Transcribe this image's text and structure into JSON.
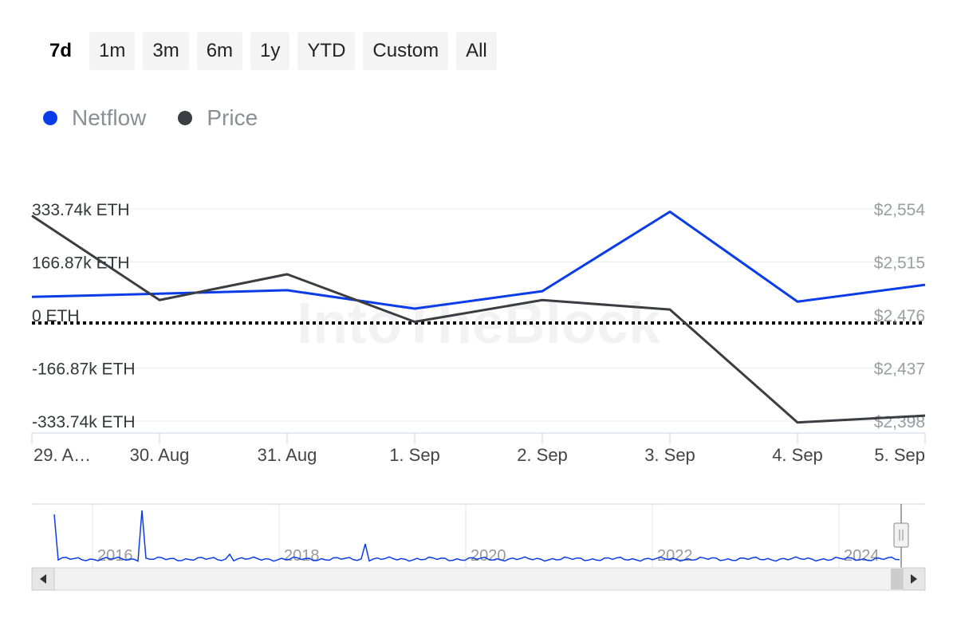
{
  "range_buttons": [
    {
      "label": "7d",
      "active": true
    },
    {
      "label": "1m",
      "active": false
    },
    {
      "label": "3m",
      "active": false
    },
    {
      "label": "6m",
      "active": false
    },
    {
      "label": "1y",
      "active": false
    },
    {
      "label": "YTD",
      "active": false
    },
    {
      "label": "Custom",
      "active": false
    },
    {
      "label": "All",
      "active": false
    }
  ],
  "legend": [
    {
      "label": "Netflow",
      "color": "#0a3de8"
    },
    {
      "label": "Price",
      "color": "#3b3d42"
    }
  ],
  "watermark": "IntoTheBlock",
  "chart_data": {
    "type": "line",
    "categories": [
      "29. A…",
      "30. Aug",
      "31. Aug",
      "1. Sep",
      "2. Sep",
      "3. Sep",
      "4. Sep",
      "5. Sep"
    ],
    "left_axis": {
      "ticks": [
        333740,
        166870,
        0,
        -166870,
        -333740
      ],
      "tick_labels": [
        "333.74k ETH",
        "166.87k ETH",
        "0 ETH",
        "-166.87k ETH",
        "-333.74k ETH"
      ],
      "range": [
        -333740,
        333740
      ]
    },
    "right_axis": {
      "ticks": [
        2554,
        2515,
        2476,
        2437,
        2398
      ],
      "tick_labels": [
        "$2,554",
        "$2,515",
        "$2,476",
        "$2,437",
        "$2,398"
      ],
      "range": [
        2398,
        2554
      ]
    },
    "series": [
      {
        "name": "Netflow",
        "axis": "left",
        "color": "#0a3de8",
        "values": [
          57000,
          67000,
          78000,
          20000,
          75000,
          325000,
          42000,
          95000
        ]
      },
      {
        "name": "Price",
        "axis": "right",
        "color": "#3b3d42",
        "values": [
          2549,
          2487,
          2506,
          2471,
          2487,
          2480,
          2397,
          2402
        ]
      }
    ],
    "zero_line": "dotted",
    "navigator": {
      "year_labels": [
        "2016",
        "2018",
        "2020",
        "2022",
        "2024"
      ],
      "color": "#0a3de8"
    }
  }
}
